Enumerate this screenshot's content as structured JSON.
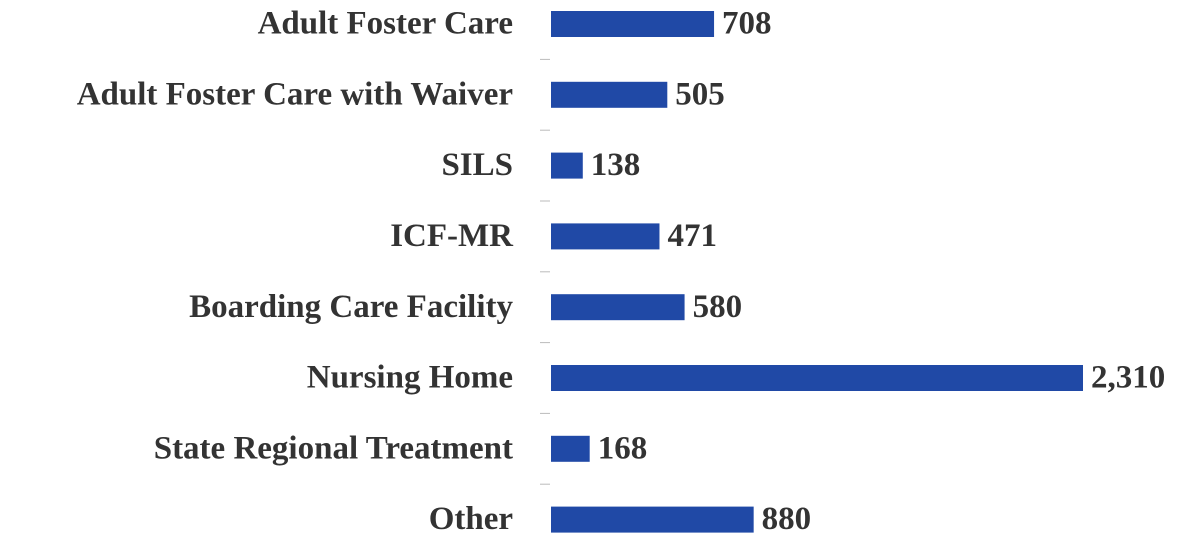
{
  "chart_data": {
    "type": "bar",
    "orientation": "horizontal",
    "categories": [
      "Adult Foster Care",
      "Adult Foster Care with Waiver",
      "SILS",
      "ICF-MR",
      "Boarding Care Facility",
      "Nursing Home",
      "State Regional Treatment",
      "Other"
    ],
    "values": [
      708,
      505,
      138,
      471,
      580,
      2310,
      168,
      880
    ],
    "value_labels": [
      "708",
      "505",
      "138",
      "471",
      "580",
      "2,310",
      "168",
      "880"
    ],
    "color": "#2049a6"
  }
}
